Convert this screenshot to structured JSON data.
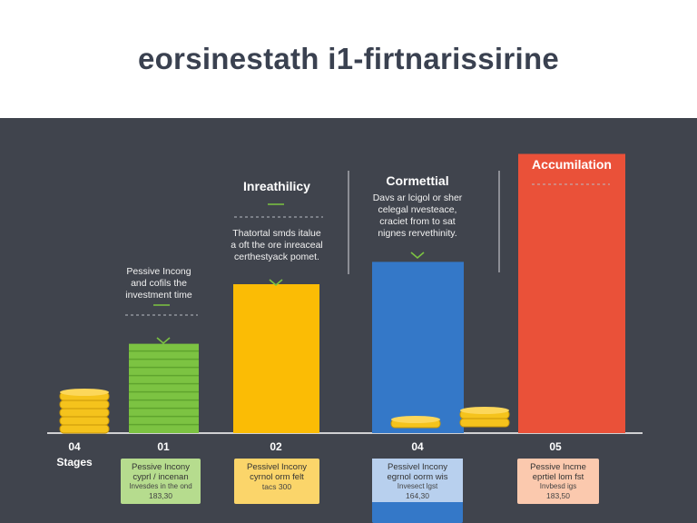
{
  "title": "eorsinestath i1-firtnarissirine",
  "colors": {
    "background_top": "#ffffff",
    "panel": "#40444d",
    "green": "#7cc342",
    "yellow": "#fbbc05",
    "blue": "#3478c8",
    "red": "#ea5139",
    "coin": "#f5c31c"
  },
  "chart_data": {
    "type": "bar",
    "x_axis_label": "Stages",
    "categories": [
      "04",
      "01",
      "02",
      "04",
      "05"
    ],
    "values": [
      0,
      24,
      40,
      46,
      75
    ],
    "bar_colors": [
      "coin",
      "green",
      "yellow",
      "blue",
      "red"
    ],
    "ylim": [
      0,
      80
    ],
    "annotations": [
      {
        "title": "",
        "lines": [
          "Pessive Incong",
          "and cofils the",
          "investment time"
        ]
      },
      {
        "title": "Inreathilicy",
        "lines": [
          "Thatortal smds italue",
          "a oft the ore inreaceal",
          "certhestyack pomet."
        ]
      },
      {
        "title": "Cormettial",
        "lines": [
          "Davs ar lcigol or sher",
          "celegal nvesteace,",
          "craciet from to sat",
          "nignes rervethinity."
        ]
      },
      {
        "title": "Accumilation",
        "lines": []
      }
    ],
    "cards": [
      {
        "lines": [
          "Pessive Incony",
          "cyprl / incenan",
          "Invesdes in the ond",
          "183,30"
        ],
        "color": "green"
      },
      {
        "lines": [
          "Pessivel Incony",
          "cyrnol orm felt",
          "",
          "tacs 300"
        ],
        "color": "yellow"
      },
      {
        "lines": [
          "Pessivel Incony",
          "egrnol oorm wis",
          "Invesect lgst",
          "164,30"
        ],
        "color": "blue"
      },
      {
        "lines": [
          "Pessive Incme",
          "eprtiel lom fst",
          "Invbesd igs",
          "183,50"
        ],
        "color": "red"
      }
    ]
  }
}
